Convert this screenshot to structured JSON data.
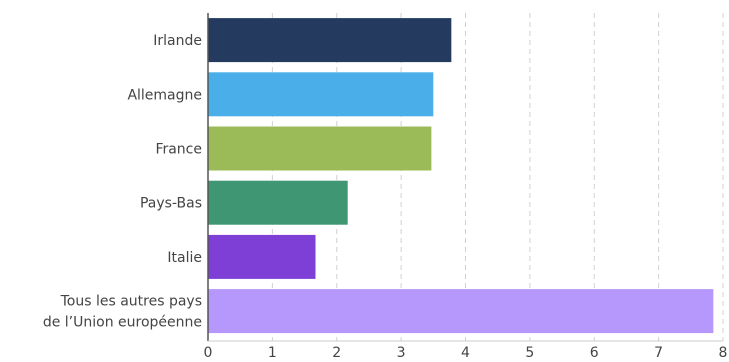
{
  "chart_data": {
    "type": "bar",
    "orientation": "horizontal",
    "categories": [
      [
        "Irlande"
      ],
      [
        "Allemagne"
      ],
      [
        "France"
      ],
      [
        "Pays-Bas"
      ],
      [
        "Italie"
      ],
      [
        "Tous les autres pays",
        "de l’Union européenne"
      ]
    ],
    "values": [
      3.78,
      3.5,
      3.47,
      2.17,
      1.67,
      7.85
    ],
    "colors": [
      "#243a5e",
      "#4aaee8",
      "#9bbb59",
      "#3f9672",
      "#7d3fd6",
      "#b697fb"
    ],
    "xlim": [
      0,
      8
    ],
    "xticks": [
      "0",
      "1",
      "2",
      "3",
      "4",
      "5",
      "6",
      "7",
      "8"
    ],
    "grid": true
  }
}
